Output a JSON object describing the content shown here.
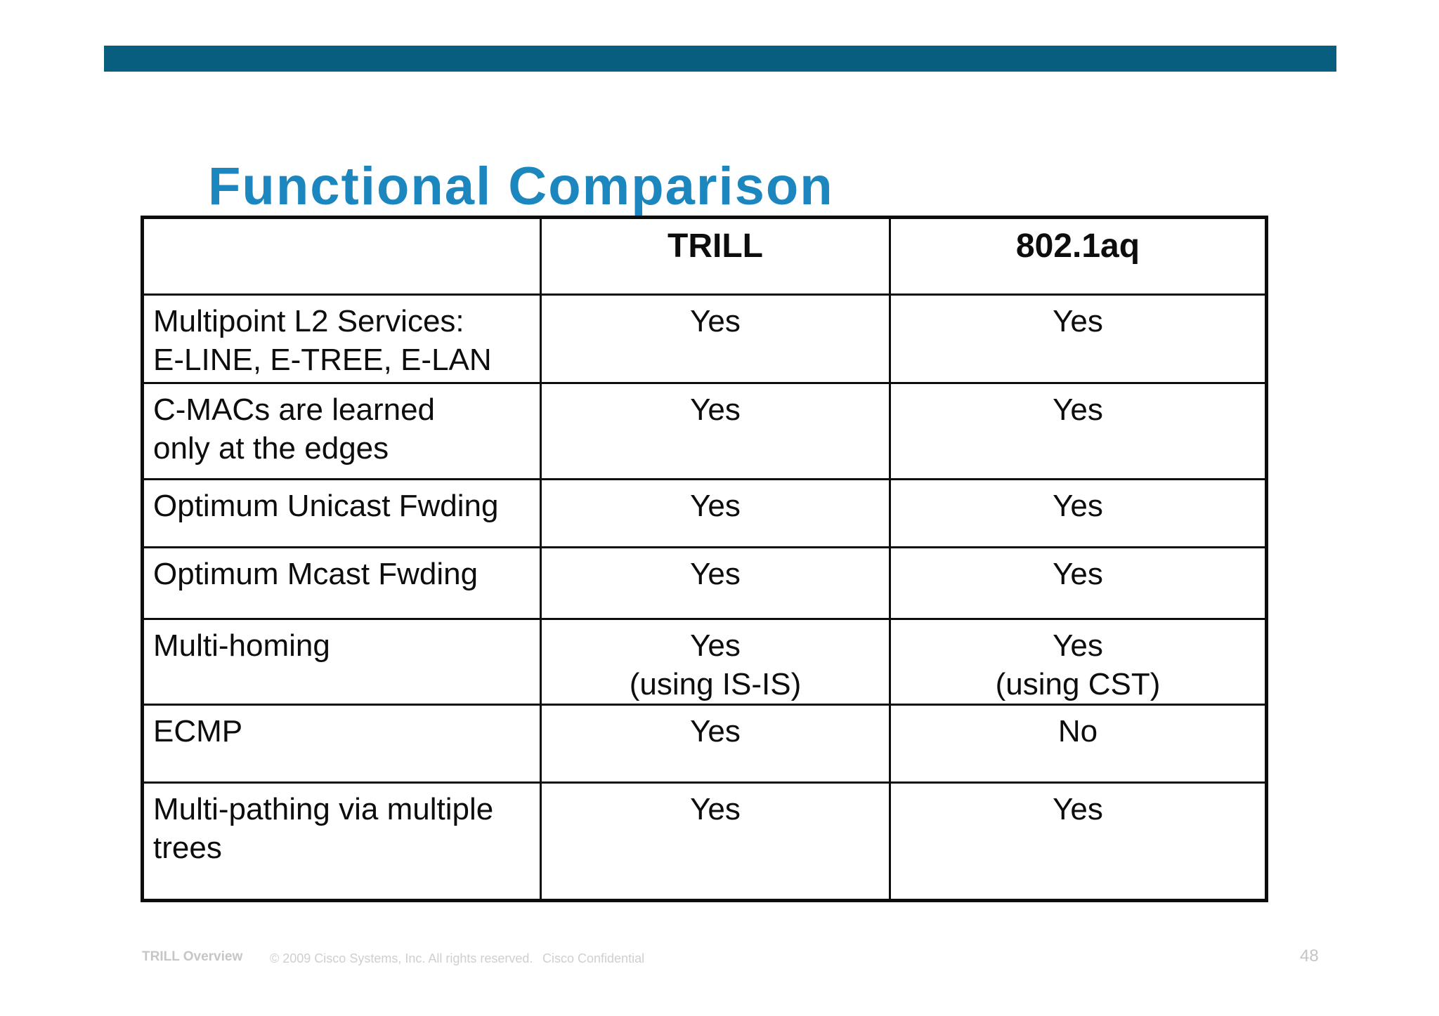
{
  "top_bar": {
    "color": "#085e7e"
  },
  "title": {
    "text": "Functional Comparison",
    "color": "#1c86bf"
  },
  "table": {
    "columns": [
      "",
      "TRILL",
      "802.1aq"
    ],
    "rows": [
      {
        "feature": "Multipoint L2 Services:\nE-LINE, E-TREE, E-LAN",
        "trill": "Yes",
        "aq": "Yes"
      },
      {
        "feature": "C-MACs are learned\nonly at the edges",
        "trill": "Yes",
        "aq": "Yes"
      },
      {
        "feature": "Optimum Unicast Fwding",
        "trill": "Yes",
        "aq": "Yes"
      },
      {
        "feature": "Optimum Mcast Fwding",
        "trill": "Yes",
        "aq": "Yes"
      },
      {
        "feature": "Multi-homing",
        "trill": "Yes\n(using IS-IS)",
        "aq": "Yes\n(using CST)"
      },
      {
        "feature": "ECMP",
        "trill": "Yes",
        "aq": "No"
      },
      {
        "feature": "Multi-pathing via multiple\ntrees",
        "trill": "Yes",
        "aq": "Yes"
      }
    ]
  },
  "footer": {
    "deck_title": "TRILL Overview",
    "copyright": "© 2009 Cisco Systems, Inc. All rights reserved.",
    "classification": "Cisco Confidential",
    "page_number": "48"
  }
}
